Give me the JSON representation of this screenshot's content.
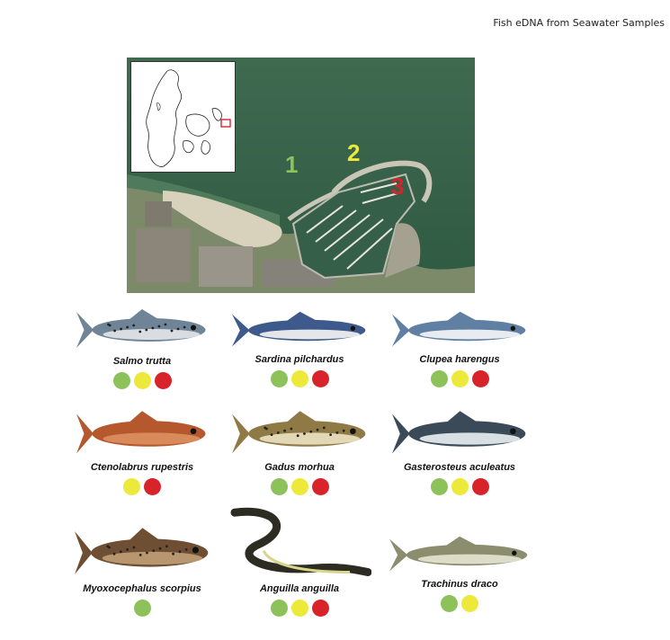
{
  "header": {
    "title": "Fish eDNA from Seawater Samples"
  },
  "map": {
    "sites": [
      {
        "label": "1",
        "color": "#8dc25a"
      },
      {
        "label": "2",
        "color": "#ece93a"
      },
      {
        "label": "3",
        "color": "#d8232a"
      }
    ],
    "inset_highlight_color": "#d8232a"
  },
  "colors": {
    "site1": "#8dc25a",
    "site2": "#ece93a",
    "site3": "#d8232a"
  },
  "species": [
    {
      "name": "Salmo trutta",
      "detected_sites": [
        "1",
        "2",
        "3"
      ]
    },
    {
      "name": "Sardina pilchardus",
      "detected_sites": [
        "1",
        "2",
        "3"
      ]
    },
    {
      "name": "Clupea harengus",
      "detected_sites": [
        "1",
        "2",
        "3"
      ]
    },
    {
      "name": "Ctenolabrus rupestris",
      "detected_sites": [
        "2",
        "3"
      ]
    },
    {
      "name": "Gadus morhua",
      "detected_sites": [
        "1",
        "2",
        "3"
      ]
    },
    {
      "name": "Gasterosteus aculeatus",
      "detected_sites": [
        "1",
        "2",
        "3"
      ]
    },
    {
      "name": "Myoxocephalus scorpius",
      "detected_sites": [
        "1"
      ]
    },
    {
      "name": "Anguilla anguilla",
      "detected_sites": [
        "1",
        "2",
        "3"
      ]
    },
    {
      "name": "Trachinus draco",
      "detected_sites": [
        "1",
        "2"
      ]
    }
  ]
}
